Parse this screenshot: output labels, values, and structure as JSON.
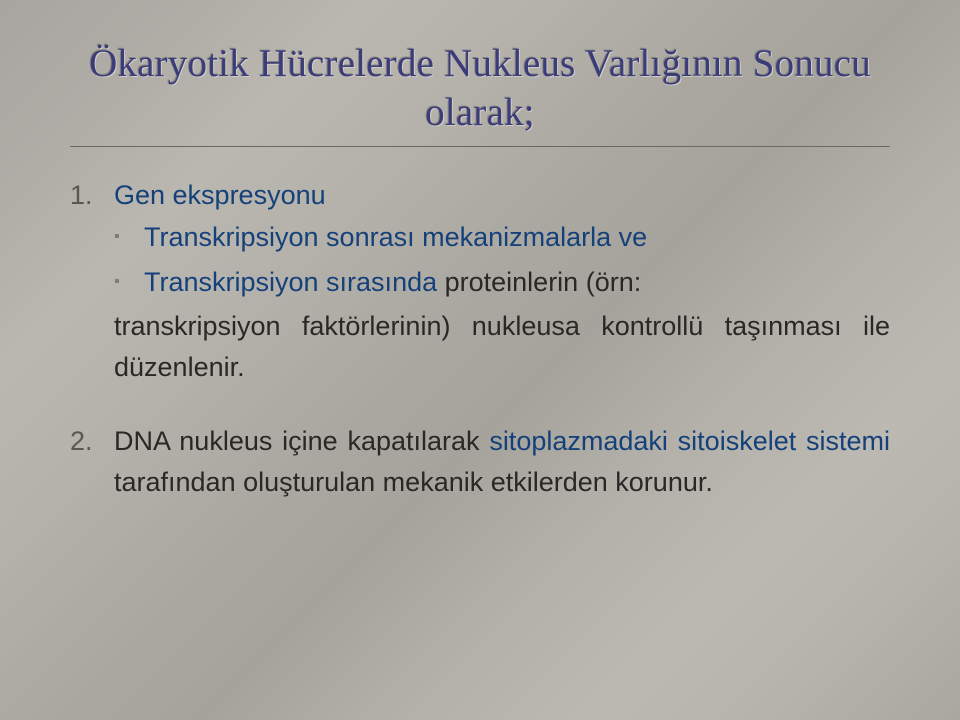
{
  "colors": {
    "title_color": "#3b3c7a",
    "body_color": "#2a2826",
    "link_color": "#14417a",
    "marker_color": "#5a5650",
    "sub_marker_color": "#807c75",
    "underline_color": "#6b6861",
    "bg_gradient_stops": [
      "#a8a4a0",
      "#b0aca6",
      "#bab6b0",
      "#b5b1ab",
      "#aba7a1",
      "#a6a29c",
      "#b2aea8",
      "#bcb8b2",
      "#b6b2ac",
      "#aaa6a0"
    ]
  },
  "typography": {
    "title_font": "Georgia",
    "title_size_pt": 29,
    "body_font": "Arial",
    "body_size_pt": 20,
    "line_height": 1.5
  },
  "title": {
    "line1": "Ökaryotik Hücrelerde Nukleus Varlığının Sonucu",
    "line2": "olarak;"
  },
  "items": [
    {
      "marker": "1.",
      "lead": "Gen ekspresyonu",
      "sub": [
        {
          "bullet": "▪",
          "text": "Transkripsiyon sonrası mekanizmalarla ve"
        },
        {
          "bullet": "▪",
          "prefix": "Transkripsiyon sırasında ",
          "suffix": "proteinlerin (örn:"
        }
      ],
      "tail": "transkripsiyon faktörlerinin) nukleusa kontrollü taşınması ile düzenlenir."
    },
    {
      "marker": "2.",
      "p_a": "DNA nukleus içine kapatılarak ",
      "p_link": "sitoplazmadaki sitoiskelet sistemi ",
      "p_b": "tarafından oluşturulan mekanik etkilerden korunur."
    }
  ]
}
